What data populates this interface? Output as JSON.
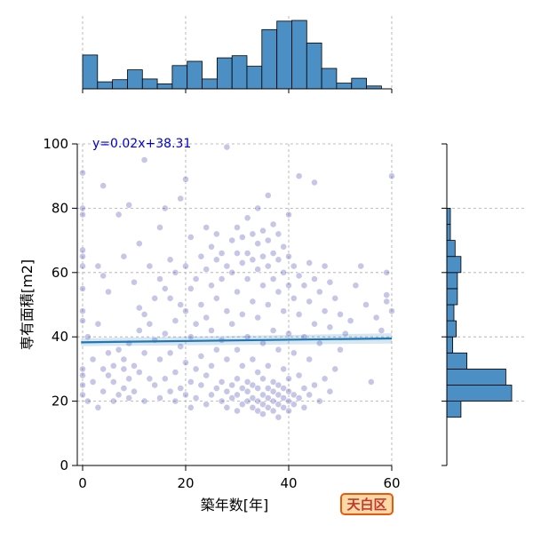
{
  "chart_data": {
    "type": "scatter",
    "subtype": "jointplot",
    "xlabel": "築年数[年]",
    "ylabel": "専有面積[m2]",
    "xlim": [
      0,
      60
    ],
    "ylim": [
      0,
      100
    ],
    "xticks": [
      "0",
      "20",
      "40",
      "60"
    ],
    "yticks": [
      "0",
      "20",
      "40",
      "60",
      "80",
      "100"
    ],
    "grid": true,
    "point_color": "#3333aa",
    "regression": {
      "equation": "y=0.02x+38.31",
      "slope": 0.02,
      "intercept": 38.31,
      "color": "#1f77b4",
      "label_color": "#0000cc"
    },
    "hist_color": "#4c8fc4",
    "x_hist": {
      "bins": [
        0,
        2.9,
        5.8,
        8.7,
        11.6,
        14.5,
        17.4,
        20.3,
        23.2,
        26.1,
        29,
        31.9,
        34.8,
        37.7,
        40.6,
        43.5,
        46.4,
        49.3,
        52.2,
        55.1,
        58
      ],
      "counts": [
        48,
        10,
        13,
        27,
        14,
        7,
        33,
        39,
        14,
        44,
        47,
        32,
        84,
        96,
        97,
        65,
        29,
        8,
        15,
        4,
        3
      ]
    },
    "y_hist": {
      "bins": [
        15,
        20,
        25,
        30,
        35,
        40,
        45,
        50,
        55,
        60,
        65,
        70,
        75,
        80
      ],
      "counts": [
        12,
        55,
        50,
        17,
        5,
        8,
        6,
        9,
        9,
        12,
        7,
        3,
        3
      ]
    },
    "scatter_points": [
      [
        0,
        22
      ],
      [
        0,
        25
      ],
      [
        0,
        28
      ],
      [
        0,
        30
      ],
      [
        0,
        45
      ],
      [
        0,
        48
      ],
      [
        0,
        55
      ],
      [
        0,
        62
      ],
      [
        0,
        65
      ],
      [
        0,
        67
      ],
      [
        0,
        78
      ],
      [
        0,
        80
      ],
      [
        0,
        91
      ],
      [
        1,
        20
      ],
      [
        1,
        40
      ],
      [
        2,
        26
      ],
      [
        2,
        33
      ],
      [
        3,
        18
      ],
      [
        3,
        44
      ],
      [
        3,
        62
      ],
      [
        4,
        23
      ],
      [
        4,
        30
      ],
      [
        4,
        59
      ],
      [
        4,
        87
      ],
      [
        5,
        28
      ],
      [
        5,
        35
      ],
      [
        5,
        54
      ],
      [
        6,
        20
      ],
      [
        6,
        26
      ],
      [
        6,
        31
      ],
      [
        7,
        22
      ],
      [
        7,
        36
      ],
      [
        7,
        78
      ],
      [
        8,
        24
      ],
      [
        8,
        30
      ],
      [
        8,
        33
      ],
      [
        8,
        65
      ],
      [
        9,
        21
      ],
      [
        9,
        27
      ],
      [
        9,
        38
      ],
      [
        9,
        81
      ],
      [
        10,
        23
      ],
      [
        10,
        31
      ],
      [
        10,
        57
      ],
      [
        11,
        29
      ],
      [
        11,
        42
      ],
      [
        11,
        49
      ],
      [
        11,
        69
      ],
      [
        12,
        20
      ],
      [
        12,
        35
      ],
      [
        12,
        47
      ],
      [
        12,
        95
      ],
      [
        13,
        27
      ],
      [
        13,
        44
      ],
      [
        13,
        62
      ],
      [
        14,
        25
      ],
      [
        14,
        39
      ],
      [
        14,
        52
      ],
      [
        15,
        21
      ],
      [
        15,
        33
      ],
      [
        15,
        58
      ],
      [
        15,
        74
      ],
      [
        16,
        27
      ],
      [
        16,
        41
      ],
      [
        16,
        55
      ],
      [
        16,
        80
      ],
      [
        17,
        23
      ],
      [
        17,
        35
      ],
      [
        17,
        52
      ],
      [
        17,
        64
      ],
      [
        18,
        20
      ],
      [
        18,
        29
      ],
      [
        18,
        45
      ],
      [
        18,
        60
      ],
      [
        19,
        24
      ],
      [
        19,
        37
      ],
      [
        19,
        50
      ],
      [
        19,
        83
      ],
      [
        20,
        22
      ],
      [
        20,
        32
      ],
      [
        20,
        48
      ],
      [
        20,
        62
      ],
      [
        20,
        89
      ],
      [
        21,
        18
      ],
      [
        21,
        26
      ],
      [
        21,
        40
      ],
      [
        21,
        55
      ],
      [
        21,
        71
      ],
      [
        22,
        21
      ],
      [
        22,
        30
      ],
      [
        22,
        44
      ],
      [
        22,
        58
      ],
      [
        23,
        25
      ],
      [
        23,
        34
      ],
      [
        23,
        50
      ],
      [
        23,
        65
      ],
      [
        24,
        19
      ],
      [
        24,
        28
      ],
      [
        24,
        46
      ],
      [
        24,
        61
      ],
      [
        24,
        74
      ],
      [
        25,
        22
      ],
      [
        25,
        31
      ],
      [
        25,
        42
      ],
      [
        25,
        56
      ],
      [
        25,
        68
      ],
      [
        26,
        24
      ],
      [
        26,
        36
      ],
      [
        26,
        52
      ],
      [
        26,
        64
      ],
      [
        26,
        72
      ],
      [
        27,
        20
      ],
      [
        27,
        26
      ],
      [
        27,
        39
      ],
      [
        27,
        58
      ],
      [
        27,
        66
      ],
      [
        28,
        18
      ],
      [
        28,
        23
      ],
      [
        28,
        33
      ],
      [
        28,
        48
      ],
      [
        28,
        62
      ],
      [
        28,
        99
      ],
      [
        29,
        21
      ],
      [
        29,
        25
      ],
      [
        29,
        44
      ],
      [
        29,
        60
      ],
      [
        29,
        70
      ],
      [
        30,
        17
      ],
      [
        30,
        22
      ],
      [
        30,
        27
      ],
      [
        30,
        36
      ],
      [
        30,
        54
      ],
      [
        30,
        66
      ],
      [
        30,
        74
      ],
      [
        31,
        19
      ],
      [
        31,
        24
      ],
      [
        31,
        31
      ],
      [
        31,
        47
      ],
      [
        31,
        63
      ],
      [
        31,
        71
      ],
      [
        32,
        20
      ],
      [
        32,
        23
      ],
      [
        32,
        26
      ],
      [
        32,
        40
      ],
      [
        32,
        58
      ],
      [
        32,
        66
      ],
      [
        32,
        77
      ],
      [
        33,
        18
      ],
      [
        33,
        21
      ],
      [
        33,
        25
      ],
      [
        33,
        33
      ],
      [
        33,
        51
      ],
      [
        33,
        64
      ],
      [
        33,
        72
      ],
      [
        34,
        17
      ],
      [
        34,
        20
      ],
      [
        34,
        24
      ],
      [
        34,
        29
      ],
      [
        34,
        46
      ],
      [
        34,
        61
      ],
      [
        34,
        69
      ],
      [
        34,
        80
      ],
      [
        35,
        16
      ],
      [
        35,
        19
      ],
      [
        35,
        22
      ],
      [
        35,
        27
      ],
      [
        35,
        38
      ],
      [
        35,
        56
      ],
      [
        35,
        65
      ],
      [
        35,
        73
      ],
      [
        36,
        18
      ],
      [
        36,
        21
      ],
      [
        36,
        24
      ],
      [
        36,
        31
      ],
      [
        36,
        50
      ],
      [
        36,
        62
      ],
      [
        36,
        70
      ],
      [
        36,
        84
      ],
      [
        37,
        17
      ],
      [
        37,
        20
      ],
      [
        37,
        23
      ],
      [
        37,
        26
      ],
      [
        37,
        42
      ],
      [
        37,
        58
      ],
      [
        37,
        66
      ],
      [
        37,
        75
      ],
      [
        38,
        15
      ],
      [
        38,
        19
      ],
      [
        38,
        22
      ],
      [
        38,
        25
      ],
      [
        38,
        36
      ],
      [
        38,
        54
      ],
      [
        38,
        64
      ],
      [
        38,
        72
      ],
      [
        39,
        18
      ],
      [
        39,
        21
      ],
      [
        39,
        24
      ],
      [
        39,
        30
      ],
      [
        39,
        48
      ],
      [
        39,
        60
      ],
      [
        39,
        68
      ],
      [
        40,
        17
      ],
      [
        40,
        20
      ],
      [
        40,
        23
      ],
      [
        40,
        27
      ],
      [
        40,
        41
      ],
      [
        40,
        56
      ],
      [
        40,
        65
      ],
      [
        40,
        78
      ],
      [
        41,
        19
      ],
      [
        41,
        22
      ],
      [
        41,
        35
      ],
      [
        41,
        52
      ],
      [
        41,
        62
      ],
      [
        42,
        21
      ],
      [
        42,
        28
      ],
      [
        42,
        47
      ],
      [
        42,
        59
      ],
      [
        42,
        90
      ],
      [
        43,
        18
      ],
      [
        43,
        24
      ],
      [
        43,
        40
      ],
      [
        43,
        56
      ],
      [
        44,
        22
      ],
      [
        44,
        33
      ],
      [
        44,
        51
      ],
      [
        44,
        63
      ],
      [
        45,
        25
      ],
      [
        45,
        44
      ],
      [
        45,
        58
      ],
      [
        45,
        88
      ],
      [
        46,
        20
      ],
      [
        46,
        38
      ],
      [
        46,
        54
      ],
      [
        47,
        27
      ],
      [
        47,
        48
      ],
      [
        47,
        62
      ],
      [
        48,
        23
      ],
      [
        48,
        43
      ],
      [
        48,
        57
      ],
      [
        49,
        30
      ],
      [
        49,
        52
      ],
      [
        50,
        36
      ],
      [
        50,
        47
      ],
      [
        51,
        41
      ],
      [
        52,
        45
      ],
      [
        53,
        56
      ],
      [
        54,
        62
      ],
      [
        55,
        50
      ],
      [
        56,
        26
      ],
      [
        57,
        46
      ],
      [
        58,
        42
      ],
      [
        59,
        51
      ],
      [
        59,
        53
      ],
      [
        59,
        60
      ],
      [
        60,
        48
      ],
      [
        60,
        90
      ]
    ]
  },
  "badge": {
    "text": "天白区"
  }
}
